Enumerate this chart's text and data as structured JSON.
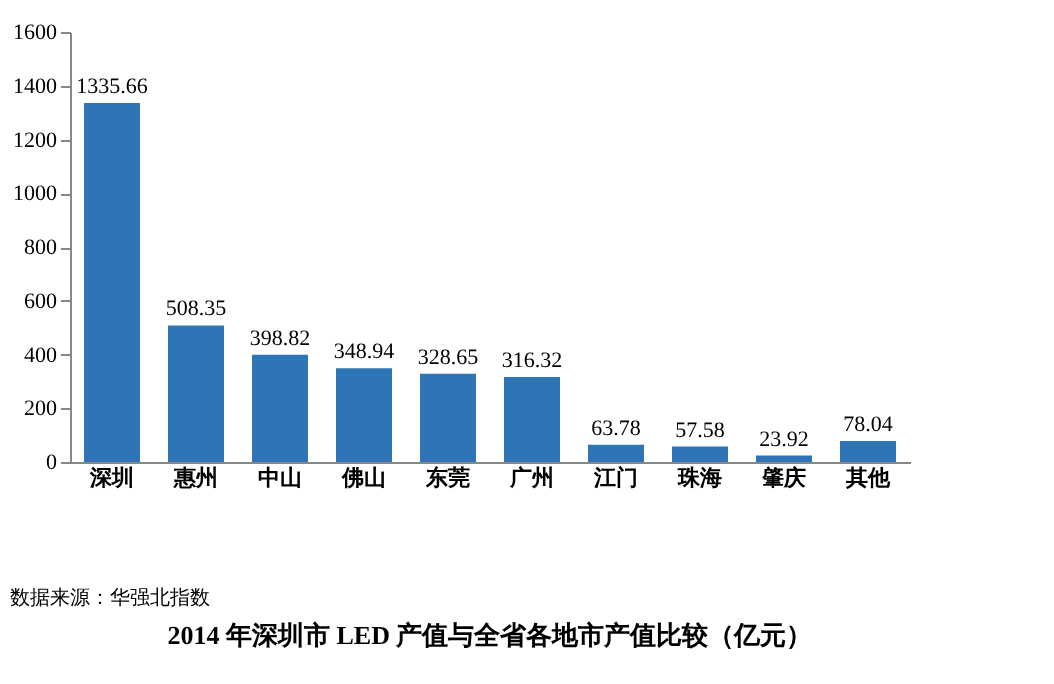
{
  "chart_data": {
    "type": "bar",
    "title": "2014 年深圳市 LED 产值与全省各地市产值比较（亿元）",
    "categories": [
      "深圳",
      "惠州",
      "中山",
      "佛山",
      "东莞",
      "广州",
      "江门",
      "珠海",
      "肇庆",
      "其他"
    ],
    "values": [
      1335.66,
      508.35,
      398.82,
      348.94,
      328.65,
      316.32,
      63.78,
      57.58,
      23.92,
      78.04
    ],
    "color": "#2e75b6",
    "ylim": [
      0,
      1600
    ],
    "yticks": [
      0,
      200,
      400,
      600,
      800,
      1000,
      1200,
      1400,
      1600
    ],
    "grid": false,
    "data_labels": true,
    "annotations": [
      "数据来源：华强北指数"
    ]
  }
}
